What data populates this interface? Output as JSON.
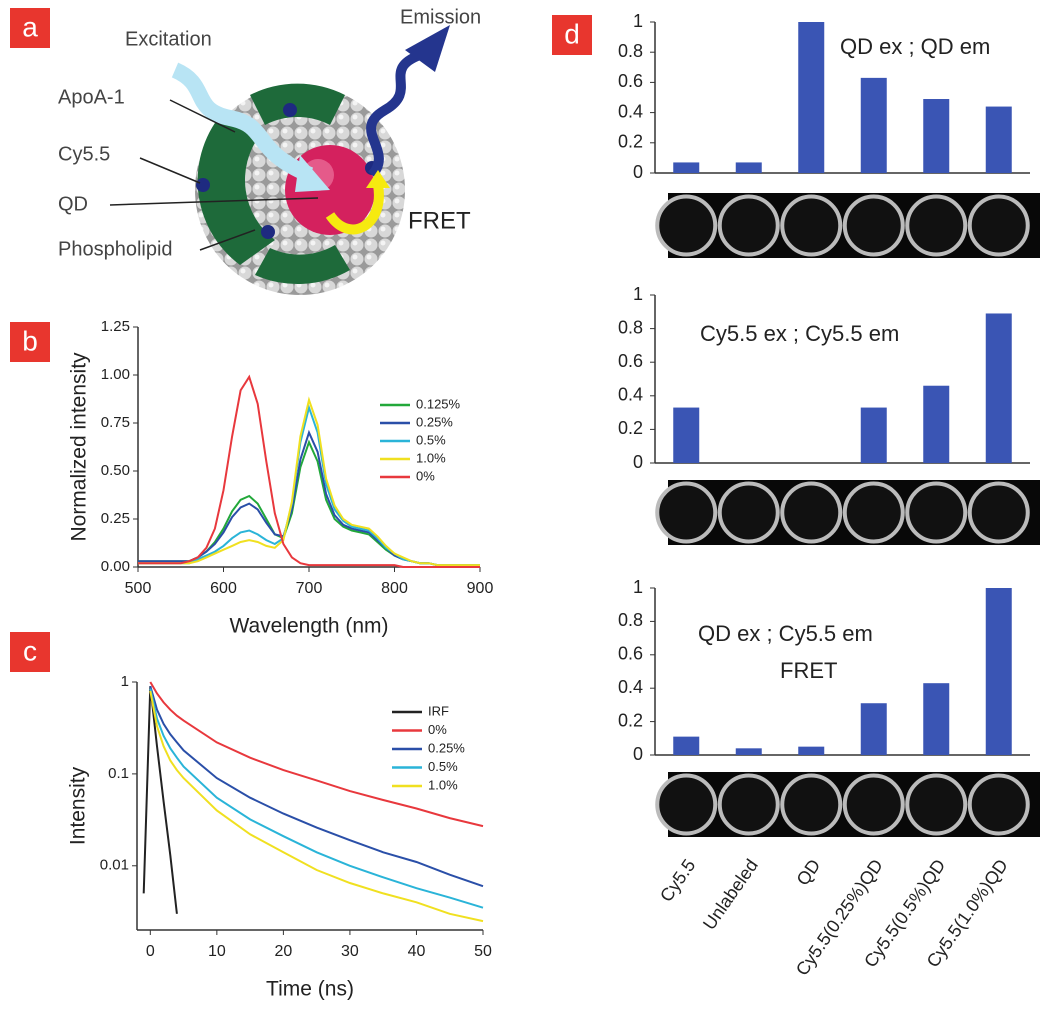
{
  "diagram": {
    "panel_label": "a",
    "labels": {
      "excitation": "Excitation",
      "emission": "Emission",
      "apoa1": "ApoA-1",
      "cy55": "Cy5.5",
      "qd": "QD",
      "phospholipid": "Phospholipid",
      "fret": "FRET"
    }
  },
  "chart_data": [
    {
      "type": "line",
      "panel_label": "b",
      "xlabel": "Wavelength (nm)",
      "ylabel": "Normalized intensity",
      "legend": "right",
      "x": [
        500,
        510,
        520,
        530,
        540,
        550,
        560,
        570,
        580,
        590,
        600,
        610,
        620,
        630,
        640,
        650,
        660,
        670,
        680,
        690,
        700,
        710,
        720,
        730,
        740,
        750,
        760,
        770,
        780,
        790,
        800,
        810,
        820,
        830,
        840,
        850,
        860,
        870,
        880,
        890,
        900
      ],
      "xlim": [
        500,
        900
      ],
      "xticks": [
        500,
        600,
        700,
        800,
        900
      ],
      "ylim": [
        0,
        1.25
      ],
      "yticks": [
        {
          "value": 0,
          "label": "0.00"
        },
        {
          "value": 0.25,
          "label": "0.25"
        },
        {
          "value": 0.5,
          "label": "0.50"
        },
        {
          "value": 0.75,
          "label": "0.75"
        },
        {
          "value": 1,
          "label": "1.00"
        },
        {
          "value": 1.25,
          "label": "1.25"
        }
      ],
      "series": [
        {
          "name": "0.125%",
          "color": "#22a83a",
          "values": [
            0.03,
            0.03,
            0.03,
            0.03,
            0.03,
            0.03,
            0.03,
            0.05,
            0.08,
            0.13,
            0.2,
            0.29,
            0.35,
            0.37,
            0.33,
            0.25,
            0.17,
            0.15,
            0.28,
            0.52,
            0.65,
            0.55,
            0.35,
            0.25,
            0.21,
            0.19,
            0.18,
            0.17,
            0.13,
            0.09,
            0.06,
            0.04,
            0.03,
            0.02,
            0.02,
            0.01,
            0.01,
            0.01,
            0.01,
            0.01,
            0.01
          ]
        },
        {
          "name": "0.25%",
          "color": "#2a4fa8",
          "values": [
            0.03,
            0.03,
            0.03,
            0.03,
            0.03,
            0.03,
            0.03,
            0.05,
            0.08,
            0.12,
            0.18,
            0.26,
            0.31,
            0.33,
            0.3,
            0.23,
            0.17,
            0.16,
            0.3,
            0.56,
            0.7,
            0.6,
            0.38,
            0.27,
            0.22,
            0.2,
            0.19,
            0.18,
            0.14,
            0.1,
            0.06,
            0.04,
            0.03,
            0.02,
            0.02,
            0.01,
            0.01,
            0.01,
            0.01,
            0.01,
            0.01
          ]
        },
        {
          "name": "0.5%",
          "color": "#2ab4d8",
          "values": [
            0.02,
            0.02,
            0.02,
            0.02,
            0.02,
            0.02,
            0.02,
            0.04,
            0.06,
            0.08,
            0.11,
            0.15,
            0.18,
            0.19,
            0.17,
            0.14,
            0.12,
            0.15,
            0.33,
            0.65,
            0.83,
            0.7,
            0.43,
            0.3,
            0.24,
            0.21,
            0.2,
            0.19,
            0.15,
            0.1,
            0.07,
            0.04,
            0.03,
            0.02,
            0.02,
            0.01,
            0.01,
            0.01,
            0.01,
            0.01,
            0.01
          ]
        },
        {
          "name": "1.0%",
          "color": "#f0e020",
          "values": [
            0.02,
            0.02,
            0.02,
            0.02,
            0.02,
            0.02,
            0.02,
            0.03,
            0.05,
            0.07,
            0.09,
            0.11,
            0.13,
            0.14,
            0.13,
            0.11,
            0.1,
            0.14,
            0.34,
            0.68,
            0.87,
            0.74,
            0.46,
            0.32,
            0.25,
            0.22,
            0.21,
            0.2,
            0.16,
            0.11,
            0.07,
            0.05,
            0.03,
            0.02,
            0.02,
            0.01,
            0.01,
            0.01,
            0.01,
            0.01,
            0.01
          ]
        },
        {
          "name": "0%",
          "color": "#e8383d",
          "values": [
            0.02,
            0.02,
            0.02,
            0.02,
            0.02,
            0.02,
            0.03,
            0.05,
            0.1,
            0.2,
            0.4,
            0.68,
            0.92,
            0.99,
            0.85,
            0.55,
            0.28,
            0.12,
            0.05,
            0.02,
            0.01,
            0.01,
            0.01,
            0.01,
            0.01,
            0.01,
            0.01,
            0.01,
            0.01,
            0.01,
            0.01,
            0,
            0,
            0,
            0,
            0,
            0,
            0,
            0,
            0,
            0
          ]
        }
      ]
    },
    {
      "type": "line",
      "panel_label": "c",
      "xlabel": "Time (ns)",
      "ylabel": "Intensity",
      "legend": "right",
      "ylog": true,
      "x": [
        -1,
        0,
        1,
        2,
        3,
        4,
        5,
        10,
        15,
        20,
        25,
        30,
        35,
        40,
        45,
        50
      ],
      "xlim": [
        -2,
        50
      ],
      "xticks": [
        0,
        10,
        20,
        30,
        40,
        50
      ],
      "ylim": [
        0.002,
        1
      ],
      "yticks": [
        0.01,
        0.1,
        1
      ],
      "series": [
        {
          "name": "IRF",
          "color": "#222222",
          "values": [
            0.005,
            0.9,
            0.2,
            0.05,
            0.013,
            0.003,
            null,
            null,
            null,
            null,
            null,
            null,
            null,
            null,
            null,
            null
          ]
        },
        {
          "name": "0%",
          "color": "#e8383d",
          "values": [
            null,
            1,
            0.75,
            0.6,
            0.5,
            0.43,
            0.38,
            0.22,
            0.15,
            0.11,
            0.085,
            0.065,
            0.052,
            0.042,
            0.033,
            0.027
          ]
        },
        {
          "name": "0.25%",
          "color": "#2a4fa8",
          "values": [
            null,
            0.9,
            0.5,
            0.35,
            0.27,
            0.22,
            0.18,
            0.09,
            0.055,
            0.037,
            0.026,
            0.019,
            0.014,
            0.011,
            0.008,
            0.006
          ]
        },
        {
          "name": "0.5%",
          "color": "#2ab4d8",
          "values": [
            null,
            0.85,
            0.4,
            0.26,
            0.19,
            0.15,
            0.12,
            0.055,
            0.032,
            0.021,
            0.014,
            0.01,
            0.0075,
            0.0057,
            0.0045,
            0.0035
          ]
        },
        {
          "name": "1.0%",
          "color": "#f0e020",
          "values": [
            null,
            0.8,
            0.33,
            0.2,
            0.14,
            0.11,
            0.09,
            0.04,
            0.022,
            0.014,
            0.009,
            0.0065,
            0.005,
            0.004,
            0.003,
            0.0025
          ]
        }
      ]
    },
    {
      "type": "bar",
      "panel_label": "d",
      "annotations": [
        "QD ex ; QD em"
      ],
      "color": "#3a55b4",
      "categories": [
        null,
        null,
        null,
        null,
        null,
        null
      ],
      "values": [
        0.07,
        0.07,
        1,
        0.63,
        0.49,
        0.44
      ],
      "ylim": [
        0,
        1
      ],
      "yticks": [
        0,
        0.2,
        0.4,
        0.6,
        0.8,
        1
      ]
    },
    {
      "type": "bar",
      "annotations": [
        "Cy5.5 ex ; Cy5.5 em"
      ],
      "color": "#3a55b4",
      "categories": [
        null,
        null,
        null,
        null,
        null,
        null
      ],
      "values": [
        0.33,
        0,
        0,
        0.33,
        0.46,
        0.89
      ],
      "ylim": [
        0,
        1
      ],
      "yticks": [
        0,
        0.2,
        0.4,
        0.6,
        0.8,
        1
      ]
    },
    {
      "type": "bar",
      "annotations": [
        "QD ex ; Cy5.5 em",
        "FRET"
      ],
      "color": "#3a55b4",
      "categories": [
        "Cy5.5",
        "Unlabeled",
        "QD",
        "Cy5.5(0.25%)QD",
        "Cy5.5(0.5%)QD",
        "Cy5.5(1.0%)QD"
      ],
      "values": [
        0.11,
        0.04,
        0.05,
        0.31,
        0.43,
        1
      ],
      "ylim": [
        0,
        1
      ],
      "yticks": [
        0,
        0.2,
        0.4,
        0.6,
        0.8,
        1
      ]
    }
  ]
}
